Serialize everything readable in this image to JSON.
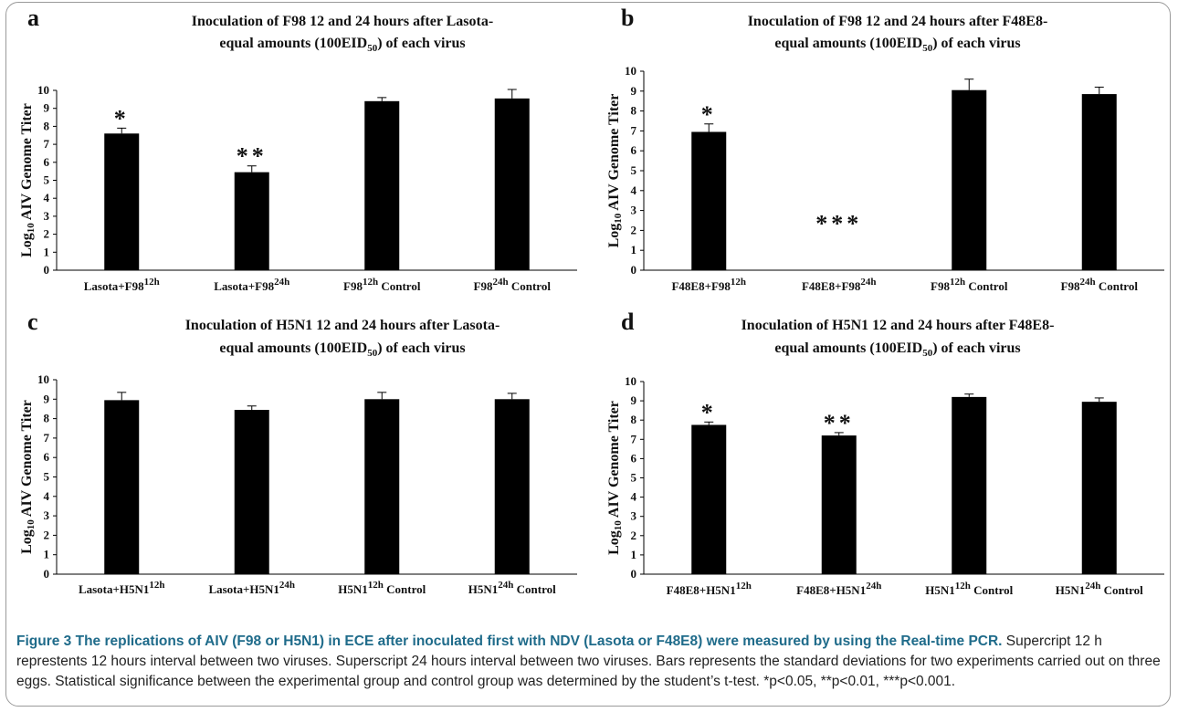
{
  "caption": {
    "bold": "Figure 3 The replications of AIV (F98 or H5N1) in ECE after inoculated first with NDV (Lasota or F48E8) were measured by using the Real-time PCR.",
    "text": " Supercript 12 h represtents 12 hours interval between two viruses. Superscript 24 hours interval between two viruses. Bars represents the standard deviations for two experiments carried out on three eggs. Statistical significance between the experimental group and control group was determined by the student’s t-test. *p<0.05, **p<0.01, ***p<0.001."
  },
  "chart_data": [
    {
      "panel": "a",
      "type": "bar",
      "title_line1": "Inoculation of F98 12 and 24 hours after Lasota-",
      "title_line2": "equal amounts (100EID50) of each virus",
      "ylabel": "Log10 AIV Genome Titer",
      "ylim": [
        0,
        10
      ],
      "yticks": [
        0,
        1,
        2,
        3,
        4,
        5,
        6,
        7,
        8,
        9,
        10
      ],
      "categories": [
        {
          "base": "Lasota+F98",
          "sup": "12h",
          "suffix": ""
        },
        {
          "base": "Lasota+F98",
          "sup": "24h",
          "suffix": ""
        },
        {
          "base": "F98",
          "sup": "12h",
          "suffix": " Control"
        },
        {
          "base": "F98",
          "sup": "24h",
          "suffix": " Control"
        }
      ],
      "values": [
        7.6,
        5.45,
        9.4,
        9.55
      ],
      "errors": [
        0.3,
        0.35,
        0.2,
        0.5
      ],
      "significance": [
        "*",
        "**",
        "",
        ""
      ]
    },
    {
      "panel": "b",
      "type": "bar",
      "title_line1": "Inoculation of F98 12 and 24 hours after F48E8-",
      "title_line2": "equal amounts (100EID50) of each virus",
      "ylabel": "Log10 AIV Genome Titer",
      "ylim": [
        0,
        10
      ],
      "yticks": [
        0,
        1,
        2,
        3,
        4,
        5,
        6,
        7,
        8,
        9,
        10
      ],
      "categories": [
        {
          "base": "F48E8+F98",
          "sup": "12h",
          "suffix": ""
        },
        {
          "base": "F48E8+F98",
          "sup": "24h",
          "suffix": ""
        },
        {
          "base": "F98",
          "sup": "12h",
          "suffix": " Control"
        },
        {
          "base": "F98",
          "sup": "24h",
          "suffix": " Control"
        }
      ],
      "values": [
        6.95,
        0,
        9.05,
        8.85
      ],
      "errors": [
        0.4,
        0,
        0.55,
        0.35
      ],
      "significance": [
        "*",
        "***",
        "",
        ""
      ]
    },
    {
      "panel": "c",
      "type": "bar",
      "title_line1": "Inoculation of H5N1 12 and 24 hours after Lasota-",
      "title_line2": "equal amounts (100EID50) of each virus",
      "ylabel": "Log10 AIV Genome Titer",
      "ylim": [
        0,
        10
      ],
      "yticks": [
        0,
        1,
        2,
        3,
        4,
        5,
        6,
        7,
        8,
        9,
        10
      ],
      "categories": [
        {
          "base": "Lasota+H5N1",
          "sup": "12h",
          "suffix": ""
        },
        {
          "base": "Lasota+H5N1",
          "sup": "24h",
          "suffix": ""
        },
        {
          "base": "H5N1",
          "sup": "12h",
          "suffix": " Control"
        },
        {
          "base": "H5N1",
          "sup": "24h",
          "suffix": " Control"
        }
      ],
      "values": [
        8.95,
        8.45,
        9.0,
        9.0
      ],
      "errors": [
        0.4,
        0.2,
        0.35,
        0.3
      ],
      "significance": [
        "",
        "",
        "",
        ""
      ]
    },
    {
      "panel": "d",
      "type": "bar",
      "title_line1": "Inoculation of H5N1 12 and 24 hours after F48E8-",
      "title_line2": "equal amounts (100EID50) of each virus",
      "ylabel": "Log10 AIV Genome Titer",
      "ylim": [
        0,
        10
      ],
      "yticks": [
        0,
        1,
        2,
        3,
        4,
        5,
        6,
        7,
        8,
        9,
        10
      ],
      "categories": [
        {
          "base": "F48E8+H5N1",
          "sup": "12h",
          "suffix": ""
        },
        {
          "base": "F48E8+H5N1",
          "sup": "24h",
          "suffix": ""
        },
        {
          "base": "H5N1",
          "sup": "12h",
          "suffix": " Control"
        },
        {
          "base": "H5N1",
          "sup": "24h",
          "suffix": " Control"
        }
      ],
      "values": [
        7.75,
        7.2,
        9.2,
        8.95
      ],
      "errors": [
        0.15,
        0.15,
        0.15,
        0.2
      ],
      "significance": [
        "*",
        "**",
        "",
        ""
      ]
    }
  ]
}
